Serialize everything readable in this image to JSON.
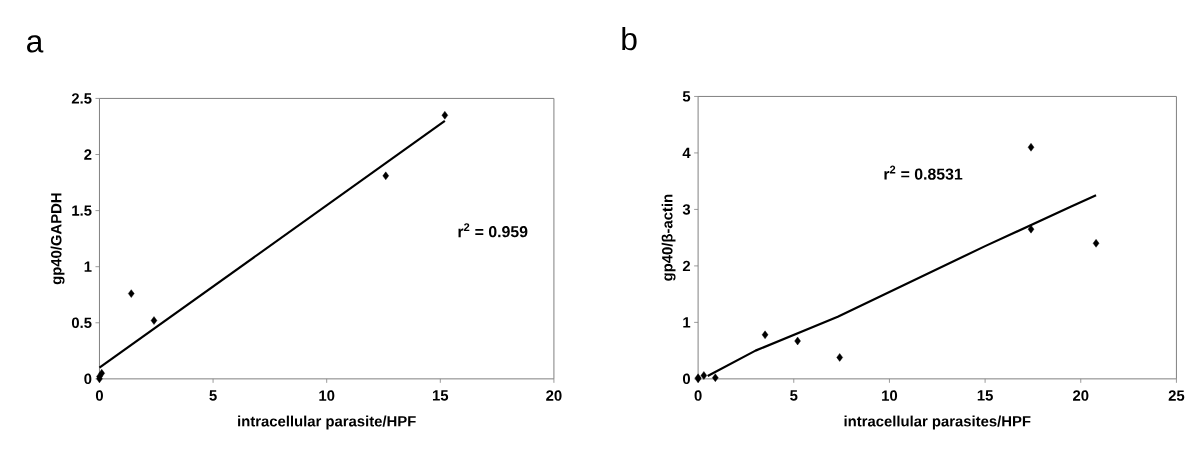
{
  "chart_data": [
    {
      "type": "scatter",
      "title": "a",
      "xlabel": "intracellular parasite/HPF",
      "ylabel": "gp40/GAPDH",
      "xlim": [
        0,
        20
      ],
      "xticks": [
        0,
        5,
        10,
        15,
        20
      ],
      "ylim": [
        0,
        2.5
      ],
      "yticks": [
        0,
        0.5,
        1,
        1.5,
        2,
        2.5
      ],
      "grid": false,
      "marker": "diamond",
      "annotations": [
        "r$^{2}$ = 0.959"
      ],
      "series": [
        {
          "color": "#000000",
          "x": [
            0,
            0,
            0.1,
            1.4,
            2.4,
            12.6,
            15.2
          ],
          "values": [
            0,
            0.02,
            0.05,
            0.76,
            0.52,
            1.81,
            2.35
          ]
        },
        {
          "type": "line",
          "color": "#000000",
          "marker": "none",
          "line_style": "solid",
          "x": [
            0,
            15.2
          ],
          "values": [
            0.1,
            2.3
          ]
        }
      ]
    },
    {
      "type": "scatter",
      "title": "b",
      "xlabel": "intracellular parasites/HPF",
      "ylabel": "gp40/β-actin",
      "xlim": [
        0,
        25
      ],
      "xticks": [
        0,
        5,
        10,
        15,
        20,
        25
      ],
      "ylim": [
        0,
        5
      ],
      "yticks": [
        0,
        1,
        2,
        3,
        4,
        5
      ],
      "grid": false,
      "marker": "diamond",
      "annotations": [
        "r$^{2}$ = 0.8531"
      ],
      "series": [
        {
          "color": "#000000",
          "x": [
            0,
            0,
            0.3,
            0.9,
            3.5,
            5.2,
            7.4,
            17.4,
            17.4,
            20.8
          ],
          "values": [
            0,
            0.02,
            0.06,
            0.02,
            0.78,
            0.67,
            0.38,
            4.1,
            2.65,
            2.4
          ]
        },
        {
          "type": "line",
          "color": "#000000",
          "marker": "none",
          "line_style": "solid",
          "x": [
            0.5,
            3,
            7.3,
            15,
            19.5,
            20.8
          ],
          "values": [
            0.05,
            0.5,
            1.1,
            2.35,
            3.05,
            3.25
          ]
        }
      ]
    }
  ]
}
